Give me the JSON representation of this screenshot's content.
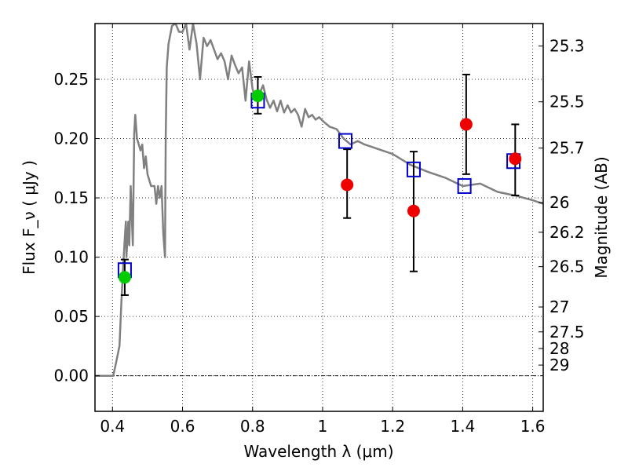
{
  "chart_data": {
    "type": "scatter",
    "xlabel": "Wavelength  λ (μm)",
    "ylabel": "Flux  F_ν  ( μJy )",
    "ylabel_right": "Magnitude (AB)",
    "xlim": [
      0.35,
      1.63
    ],
    "ylim": [
      -0.03,
      0.297
    ],
    "grid": true,
    "x_ticks": [
      0.4,
      0.6,
      0.8,
      1.0,
      1.2,
      1.4,
      1.6
    ],
    "x_tick_labels": [
      "0.4",
      "0.6",
      "0.8",
      "1",
      "1.2",
      "1.4",
      "1.6"
    ],
    "y_ticks": [
      0.0,
      0.05,
      0.1,
      0.15,
      0.2,
      0.25
    ],
    "y_tick_labels": [
      "0.00",
      "0.05",
      "0.10",
      "0.15",
      "0.20",
      "0.25"
    ],
    "right_ticks": [
      {
        "label": "25.3",
        "flux": 0.278
      },
      {
        "label": "25.5",
        "flux": 0.231
      },
      {
        "label": "25.7",
        "flux": 0.192
      },
      {
        "label": "26",
        "flux": 0.146
      },
      {
        "label": "26.2",
        "flux": 0.121
      },
      {
        "label": "26.5",
        "flux": 0.092
      },
      {
        "label": "27",
        "flux": 0.058
      },
      {
        "label": "27.5",
        "flux": 0.037
      },
      {
        "label": "28",
        "flux": 0.023
      },
      {
        "label": "29",
        "flux": 0.009
      }
    ],
    "zero_line": 0.0,
    "series": [
      {
        "kind": "template-spectrum",
        "color": "#808080",
        "x": [
          0.35,
          0.375,
          0.4,
          0.402,
          0.408,
          0.42,
          0.425,
          0.43,
          0.435,
          0.438,
          0.44,
          0.445,
          0.448,
          0.452,
          0.458,
          0.462,
          0.465,
          0.47,
          0.475,
          0.48,
          0.485,
          0.49,
          0.495,
          0.5,
          0.51,
          0.52,
          0.525,
          0.53,
          0.535,
          0.54,
          0.545,
          0.55,
          0.552,
          0.555,
          0.56,
          0.57,
          0.58,
          0.59,
          0.6,
          0.61,
          0.62,
          0.63,
          0.64,
          0.65,
          0.66,
          0.67,
          0.68,
          0.69,
          0.7,
          0.71,
          0.72,
          0.73,
          0.74,
          0.75,
          0.76,
          0.77,
          0.78,
          0.79,
          0.8,
          0.81,
          0.82,
          0.83,
          0.84,
          0.85,
          0.86,
          0.87,
          0.88,
          0.89,
          0.9,
          0.91,
          0.92,
          0.93,
          0.94,
          0.95,
          0.96,
          0.97,
          0.98,
          0.99,
          1.0,
          1.02,
          1.04,
          1.06,
          1.08,
          1.1,
          1.12,
          1.15,
          1.2,
          1.25,
          1.3,
          1.35,
          1.4,
          1.45,
          1.5,
          1.55,
          1.6,
          1.63
        ],
        "y": [
          0.0,
          0.0,
          0.0,
          0.0,
          0.008,
          0.025,
          0.06,
          0.09,
          0.115,
          0.13,
          0.1,
          0.13,
          0.11,
          0.16,
          0.11,
          0.205,
          0.22,
          0.2,
          0.195,
          0.19,
          0.195,
          0.175,
          0.185,
          0.17,
          0.16,
          0.16,
          0.145,
          0.16,
          0.15,
          0.16,
          0.12,
          0.1,
          0.2,
          0.26,
          0.28,
          0.295,
          0.297,
          0.29,
          0.29,
          0.297,
          0.275,
          0.297,
          0.28,
          0.25,
          0.285,
          0.278,
          0.283,
          0.275,
          0.267,
          0.272,
          0.265,
          0.25,
          0.27,
          0.262,
          0.255,
          0.26,
          0.232,
          0.265,
          0.242,
          0.232,
          0.238,
          0.245,
          0.233,
          0.226,
          0.232,
          0.223,
          0.232,
          0.222,
          0.228,
          0.222,
          0.225,
          0.22,
          0.21,
          0.225,
          0.218,
          0.22,
          0.216,
          0.218,
          0.215,
          0.21,
          0.208,
          0.2,
          0.195,
          0.198,
          0.195,
          0.192,
          0.187,
          0.178,
          0.172,
          0.167,
          0.16,
          0.162,
          0.155,
          0.152,
          0.148,
          0.145
        ]
      },
      {
        "kind": "model-points",
        "marker": "open-square",
        "color": "#0000cc",
        "x": [
          0.435,
          0.815,
          1.065,
          1.26,
          1.405,
          1.545
        ],
        "y": [
          0.089,
          0.232,
          0.198,
          0.174,
          0.16,
          0.181
        ]
      },
      {
        "kind": "detections",
        "marker": "filled-circle",
        "color": "#00cc00",
        "x": [
          0.435,
          0.815
        ],
        "y": [
          0.083,
          0.236
        ],
        "yerr_low": [
          0.068,
          0.221
        ],
        "yerr_high": [
          0.098,
          0.252
        ]
      },
      {
        "kind": "photometry",
        "marker": "filled-circle",
        "color": "#ee0000",
        "x": [
          1.07,
          1.26,
          1.41,
          1.55
        ],
        "y": [
          0.161,
          0.139,
          0.212,
          0.183
        ],
        "yerr_low": [
          0.133,
          0.088,
          0.17,
          0.152
        ],
        "yerr_high": [
          0.191,
          0.189,
          0.254,
          0.212
        ]
      }
    ]
  }
}
